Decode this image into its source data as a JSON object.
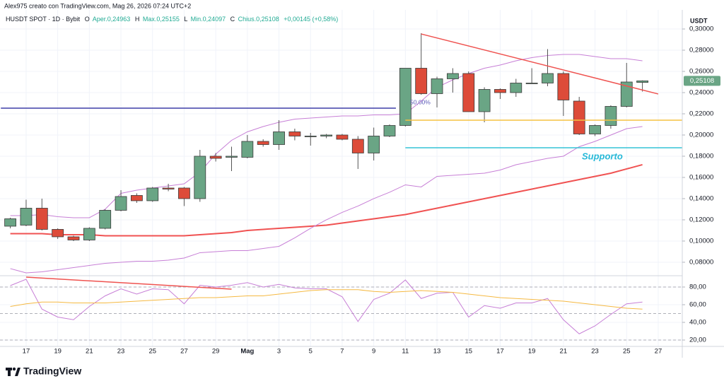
{
  "header": {
    "attribution": "Alex975 creato con TradingView.com, Mag 26, 2026 07:24 UTC+2",
    "symbol": "HUSDT SPOT · 1D · Bybit",
    "ohlc": [
      {
        "key": "O",
        "text": "Aper.0,24963"
      },
      {
        "key": "H",
        "text": "Max.0,25155"
      },
      {
        "key": "L",
        "text": "Min.0,24097"
      },
      {
        "key": "C",
        "text": "Chius.0,25108"
      }
    ],
    "change": "+0,00145 (+0,58%)",
    "currency": "USDT"
  },
  "annotations": {
    "support": "Supporto",
    "fib": "50,00%"
  },
  "footer": {
    "logo": "TradingView"
  },
  "chart_data": [
    {
      "type": "candlestick",
      "categories": [
        null,
        "17",
        null,
        "19",
        null,
        "21",
        null,
        "23",
        null,
        "25",
        null,
        "27",
        null,
        "29",
        null,
        "Mag",
        null,
        "3",
        null,
        "5",
        null,
        "7",
        null,
        "9",
        null,
        "11",
        null,
        "13",
        null,
        "15",
        null,
        "17",
        null,
        "19",
        null,
        "21",
        null,
        "23",
        null,
        "25",
        null,
        "27"
      ],
      "open": [
        0.114,
        0.115,
        0.131,
        0.111,
        0.104,
        0.101,
        0.112,
        0.129,
        0.143,
        0.138,
        0.15,
        0.15,
        0.14,
        0.18,
        0.179,
        0.179,
        0.194,
        0.191,
        0.203,
        0.199,
        0.199,
        0.2,
        0.196,
        0.183,
        0.199,
        0.209,
        0.263,
        0.239,
        0.253,
        0.258,
        0.222,
        0.243,
        0.24,
        0.249,
        0.249,
        0.258,
        0.232,
        0.201,
        0.209,
        0.227,
        0.24963,
        null
      ],
      "high": [
        0.122,
        0.139,
        0.14,
        0.112,
        0.105,
        0.113,
        0.13,
        0.148,
        0.145,
        0.151,
        0.154,
        0.151,
        0.186,
        0.183,
        0.189,
        0.2,
        0.196,
        0.214,
        0.206,
        0.202,
        0.201,
        0.201,
        0.199,
        0.207,
        0.21,
        0.263,
        0.296,
        0.255,
        0.263,
        0.26,
        0.245,
        0.244,
        0.253,
        0.263,
        0.281,
        0.26,
        0.236,
        0.21,
        0.228,
        0.268,
        0.25155,
        null
      ],
      "low": [
        0.112,
        0.114,
        0.11,
        0.102,
        0.1,
        0.1,
        0.111,
        0.128,
        0.136,
        0.137,
        0.147,
        0.133,
        0.137,
        0.175,
        0.166,
        0.178,
        0.189,
        0.186,
        0.195,
        0.19,
        0.197,
        0.195,
        0.168,
        0.176,
        0.198,
        0.208,
        0.238,
        0.226,
        0.24,
        0.222,
        0.212,
        0.234,
        0.236,
        0.249,
        0.246,
        0.218,
        0.2,
        0.199,
        0.206,
        0.226,
        0.24097,
        null
      ],
      "close": [
        0.121,
        0.131,
        0.111,
        0.104,
        0.101,
        0.112,
        0.129,
        0.142,
        0.138,
        0.15,
        0.149,
        0.14,
        0.18,
        0.178,
        0.18,
        0.194,
        0.191,
        0.203,
        0.199,
        0.199,
        0.2,
        0.196,
        0.183,
        0.199,
        0.209,
        0.263,
        0.239,
        0.253,
        0.258,
        0.222,
        0.243,
        0.24,
        0.249,
        0.249,
        0.258,
        0.233,
        0.201,
        0.209,
        0.227,
        0.25,
        0.25108,
        null
      ],
      "up_color": "#6aa585",
      "down_color": "#dd4b39",
      "series": [
        {
          "color": "#f05252",
          "width": 2,
          "values": [
            0.107,
            0.107,
            0.107,
            0.106,
            0.106,
            0.106,
            0.105,
            0.105,
            0.105,
            0.105,
            0.105,
            0.105,
            0.106,
            0.107,
            0.108,
            0.11,
            0.111,
            0.112,
            0.113,
            0.114,
            0.115,
            0.117,
            0.119,
            0.121,
            0.123,
            0.125,
            0.128,
            0.131,
            0.134,
            0.137,
            0.14,
            0.143,
            0.146,
            0.149,
            0.152,
            0.155,
            0.158,
            0.161,
            0.164,
            0.168,
            0.172,
            null
          ]
        },
        {
          "color": "#c77fd6",
          "width": 1,
          "values": [
            0.124,
            0.124,
            0.125,
            0.123,
            0.122,
            0.122,
            0.13,
            0.145,
            0.148,
            0.15,
            0.152,
            0.154,
            0.165,
            0.182,
            0.195,
            0.203,
            0.208,
            0.212,
            0.215,
            0.216,
            0.217,
            0.218,
            0.218,
            0.219,
            0.219,
            0.22,
            0.232,
            0.245,
            0.252,
            0.258,
            0.263,
            0.266,
            0.27,
            0.273,
            0.275,
            0.276,
            0.276,
            0.274,
            0.272,
            0.272,
            0.27,
            null
          ]
        },
        {
          "color": "#c77fd6",
          "width": 1,
          "values": [
            0.074,
            0.07,
            0.071,
            0.073,
            0.075,
            0.077,
            0.079,
            0.08,
            0.081,
            0.081,
            0.082,
            0.084,
            0.089,
            0.09,
            0.091,
            0.091,
            0.093,
            0.095,
            0.103,
            0.112,
            0.12,
            0.127,
            0.133,
            0.14,
            0.146,
            0.153,
            0.151,
            0.161,
            0.162,
            0.163,
            0.164,
            0.167,
            0.172,
            0.175,
            0.178,
            0.18,
            0.189,
            0.194,
            0.2,
            0.206,
            0.208,
            null
          ]
        }
      ],
      "trendlines": [
        {
          "color": "#3f3fa8",
          "x": [
            -0.6,
            24.4
          ],
          "y": [
            0.2253,
            0.2253
          ]
        },
        {
          "color": "#f5c242",
          "x": [
            25,
            42.5
          ],
          "y": [
            0.214,
            0.214
          ]
        },
        {
          "color": "#35c3d6",
          "x": [
            25,
            42.5
          ],
          "y": [
            0.188,
            0.188
          ]
        },
        {
          "color": "#ef5350",
          "x": [
            26,
            41
          ],
          "y": [
            0.2953,
            0.2387
          ]
        }
      ],
      "ylim": [
        0.0673,
        0.314
      ],
      "yticks": [
        {
          "value": 0.08,
          "label": "0,08000"
        },
        {
          "value": 0.1,
          "label": "0,10000"
        },
        {
          "value": 0.12,
          "label": "0,12000"
        },
        {
          "value": 0.14,
          "label": "0,14000"
        },
        {
          "value": 0.16,
          "label": "0,16000"
        },
        {
          "value": 0.18,
          "label": "0,18000"
        },
        {
          "value": 0.2,
          "label": "0,20000"
        },
        {
          "value": 0.22,
          "label": "0,22000"
        },
        {
          "value": 0.24,
          "label": "0,24000"
        },
        {
          "value": 0.26,
          "label": "0,26000"
        },
        {
          "value": 0.28,
          "label": "0,28000"
        },
        {
          "value": 0.3,
          "label": "0,30000"
        }
      ],
      "grid": true,
      "price_flag": "0,25108",
      "flag_color": "#6aa585"
    },
    {
      "type": "line",
      "series": [
        {
          "color": "#c77fd6",
          "width": 1,
          "values": [
            81.6,
            88.8,
            55,
            46,
            43,
            58,
            70,
            78,
            72,
            78,
            77,
            61,
            82,
            80,
            82,
            85,
            80,
            83,
            79,
            78,
            78,
            69,
            41,
            66,
            73,
            88,
            67,
            73,
            74,
            46,
            59,
            56,
            62,
            62,
            67,
            43,
            27,
            36,
            49,
            61,
            63,
            null
          ]
        },
        {
          "color": "#f5b942",
          "width": 1,
          "values": [
            58,
            61,
            63,
            63,
            62,
            62,
            62,
            63,
            64,
            65,
            66,
            67,
            68,
            68,
            69,
            70,
            70,
            72,
            74,
            76,
            77,
            77,
            77,
            75,
            74,
            75,
            76,
            75,
            74,
            72,
            70,
            68,
            67,
            66,
            65,
            64,
            62,
            60,
            58,
            56,
            55,
            null
          ]
        }
      ],
      "trendlines": [
        {
          "color": "#ef5350",
          "x": [
            1,
            14
          ],
          "y": [
            91.2,
            77.6
          ]
        }
      ],
      "bands": [
        80,
        50,
        20
      ],
      "ylim": [
        12.8,
        92.8
      ],
      "yticks": [
        {
          "value": 80,
          "label": "80,00"
        },
        {
          "value": 60,
          "label": "60,00"
        },
        {
          "value": 40,
          "label": "40,00"
        },
        {
          "value": 20,
          "label": "20,00"
        }
      ],
      "grid": true
    }
  ]
}
